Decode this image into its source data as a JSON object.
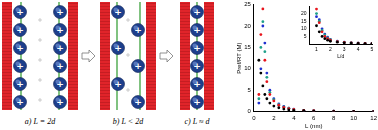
{
  "diagram": {
    "panels": [
      {
        "label": "a) L = 2d"
      },
      {
        "label": "b) L < 2d"
      },
      {
        "label": "c) L ≈ d"
      }
    ],
    "ion_label": "+"
  },
  "chart_data": [
    {
      "type": "scatter",
      "x_label": "L (nm)",
      "y_label": "Pref/RT (M)",
      "xlim": [
        0,
        12
      ],
      "xticks": [
        0,
        2,
        4,
        6,
        8,
        10,
        12
      ],
      "ylim": [
        0,
        25
      ],
      "yticks": [
        0,
        5,
        10,
        15,
        20,
        25
      ],
      "grid": false,
      "series": [
        {
          "color": "#000000",
          "marker": "circle",
          "x": [
            0.5,
            0.7,
            0.9,
            1.1,
            1.3,
            1.6,
            2,
            2.5,
            3,
            3.5,
            4,
            5,
            6,
            8,
            10,
            12
          ],
          "values": [
            12,
            9,
            6,
            4,
            3,
            2,
            1.3,
            0.9,
            0.6,
            0.4,
            0.3,
            0.2,
            0.1,
            0.05,
            0.03,
            0.02
          ]
        },
        {
          "color": "#e8141c",
          "marker": "circle",
          "x": [
            0.5,
            0.7,
            0.9,
            1.1,
            1.3,
            1.6,
            2,
            2.5,
            3,
            3.5,
            4,
            5,
            6,
            8,
            10,
            12
          ],
          "values": [
            4,
            18,
            24,
            12,
            7,
            4,
            2.5,
            1.5,
            1,
            0.7,
            0.5,
            0.3,
            0.2,
            0.1,
            0.05,
            0.03
          ]
        },
        {
          "color": "#1fa08a",
          "marker": "circle",
          "x": [
            0.5,
            0.7,
            0.9,
            1.1,
            1.3,
            1.6,
            2,
            2.5,
            3,
            3.5,
            4,
            5,
            6,
            8,
            10,
            12
          ],
          "values": [
            3,
            15,
            21,
            14,
            8,
            4.5,
            2.8,
            1.6,
            1.1,
            0.8,
            0.5,
            0.3,
            0.2,
            0.1,
            0.05,
            0.03
          ]
        },
        {
          "color": "#2030d0",
          "marker": "circle",
          "x": [
            0.5,
            0.7,
            0.9,
            1.1,
            1.3,
            1.6,
            2,
            2.5,
            3,
            3.5,
            4,
            5,
            6,
            8,
            10,
            12
          ],
          "values": [
            2,
            10,
            20,
            16,
            9,
            5,
            3,
            1.8,
            1.2,
            0.8,
            0.6,
            0.3,
            0.2,
            0.1,
            0.05,
            0.03
          ]
        }
      ]
    },
    {
      "type": "scatter",
      "x_label": "L/d",
      "xlim": [
        0.5,
        5
      ],
      "xticks": [
        1,
        2,
        3,
        4,
        5
      ],
      "ylim": [
        0,
        25
      ],
      "yticks": [
        5,
        10,
        15,
        20
      ],
      "grid": false,
      "series": [
        {
          "color": "#000000",
          "marker": "circle",
          "x": [
            1,
            1.2,
            1.4,
            1.6,
            1.8,
            2,
            2.5,
            3,
            3.5,
            4,
            4.5,
            5
          ],
          "values": [
            12,
            8,
            5,
            3.5,
            2.5,
            1.8,
            1.2,
            0.8,
            0.6,
            0.4,
            0.3,
            0.2
          ]
        },
        {
          "color": "#e8141c",
          "marker": "circle",
          "x": [
            1,
            1.2,
            1.4,
            1.6,
            1.8,
            2,
            2.5,
            3,
            3.5,
            4,
            4.5,
            5
          ],
          "values": [
            23,
            14,
            8,
            5,
            3.5,
            2.5,
            1.5,
            1,
            0.7,
            0.5,
            0.4,
            0.3
          ]
        },
        {
          "color": "#1fa08a",
          "marker": "circle",
          "x": [
            1,
            1.2,
            1.4,
            1.6,
            1.8,
            2,
            2.5,
            3,
            3.5,
            4,
            4.5,
            5
          ],
          "values": [
            20,
            15,
            9,
            6,
            4,
            2.8,
            1.6,
            1.1,
            0.8,
            0.5,
            0.4,
            0.3
          ]
        },
        {
          "color": "#2030d0",
          "marker": "circle",
          "x": [
            1,
            1.2,
            1.4,
            1.6,
            1.8,
            2,
            2.5,
            3,
            3.5,
            4,
            4.5,
            5
          ],
          "values": [
            18,
            16,
            10,
            6.5,
            4.5,
            3,
            1.8,
            1.2,
            0.8,
            0.6,
            0.4,
            0.3
          ]
        }
      ]
    }
  ]
}
